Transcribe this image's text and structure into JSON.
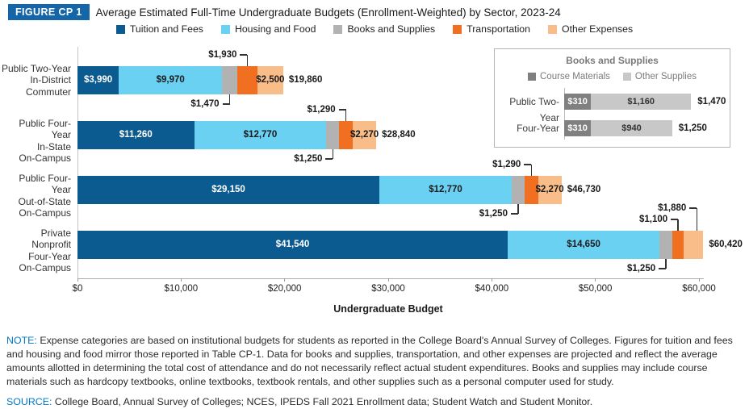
{
  "header": {
    "figure_tag": "FIGURE CP 1",
    "title": "Average Estimated Full-Time Undergraduate Budgets (Enrollment-Weighted) by Sector, 2023-24"
  },
  "legend": {
    "items": [
      {
        "label": "Tuition and Fees",
        "color": "#0b5a90"
      },
      {
        "label": "Housing and Food",
        "color": "#6ad1f2"
      },
      {
        "label": "Books and Supplies",
        "color": "#b2b2b2"
      },
      {
        "label": "Transportation",
        "color": "#f16f21"
      },
      {
        "label": "Other Expenses",
        "color": "#f9bd89"
      }
    ]
  },
  "chart_data": {
    "type": "bar",
    "stacked": true,
    "orientation": "horizontal",
    "xlabel": "Undergraduate Budget",
    "xlim": [
      0,
      60000
    ],
    "x_tick_values": [
      0,
      10000,
      20000,
      30000,
      40000,
      50000,
      60000
    ],
    "x_tick_labels": [
      "$0",
      "$10,000",
      "$20,000",
      "$30,000",
      "$40,000",
      "$50,000",
      "$60,000"
    ],
    "series": [
      "Tuition and Fees",
      "Housing and Food",
      "Books and Supplies",
      "Transportation",
      "Other Expenses"
    ],
    "colors": [
      "#0b5a90",
      "#6ad1f2",
      "#b2b2b2",
      "#f16f21",
      "#f9bd89"
    ],
    "rows": [
      {
        "category_lines": [
          "Public Two-Year",
          "In-District",
          "Commuter"
        ],
        "values": [
          3990,
          9970,
          1470,
          1930,
          2500
        ],
        "segment_labels": [
          "$3,990",
          "$9,970",
          "$1,470",
          "$1,930",
          "$2,500"
        ],
        "total": 19860,
        "total_label": "$19,860",
        "inside": [
          0,
          1,
          4
        ],
        "callouts": [
          {
            "seg": 3,
            "side": "above",
            "tier": 1
          },
          {
            "seg": 2,
            "side": "below",
            "tier": 1
          }
        ]
      },
      {
        "category_lines": [
          "Public Four-Year",
          "In-State",
          "On-Campus"
        ],
        "values": [
          11260,
          12770,
          1250,
          1290,
          2270
        ],
        "segment_labels": [
          "$11,260",
          "$12,770",
          "$1,250",
          "$1,290",
          "$2,270"
        ],
        "total": 28840,
        "total_label": "$28,840",
        "inside": [
          0,
          1,
          4
        ],
        "callouts": [
          {
            "seg": 3,
            "side": "above",
            "tier": 1
          },
          {
            "seg": 2,
            "side": "below",
            "tier": 1
          }
        ]
      },
      {
        "category_lines": [
          "Public Four-Year",
          "Out-of-State",
          "On-Campus"
        ],
        "values": [
          29150,
          12770,
          1250,
          1290,
          2270
        ],
        "segment_labels": [
          "$29,150",
          "$12,770",
          "$1,250",
          "$1,290",
          "$2,270"
        ],
        "total": 46730,
        "total_label": "$46,730",
        "inside": [
          0,
          1,
          4
        ],
        "callouts": [
          {
            "seg": 3,
            "side": "above",
            "tier": 1
          },
          {
            "seg": 2,
            "side": "below",
            "tier": 1
          }
        ]
      },
      {
        "category_lines": [
          "Private Nonprofit",
          "Four-Year",
          "On-Campus"
        ],
        "values": [
          41540,
          14650,
          1250,
          1100,
          1880
        ],
        "segment_labels": [
          "$41,540",
          "$14,650",
          "$1,250",
          "$1,100",
          "$1,880"
        ],
        "total": 60420,
        "total_label": "$60,420",
        "inside": [
          0,
          1
        ],
        "callouts": [
          {
            "seg": 4,
            "side": "above",
            "tier": 2
          },
          {
            "seg": 3,
            "side": "above",
            "tier": 1
          },
          {
            "seg": 2,
            "side": "below",
            "tier": 1
          }
        ]
      }
    ]
  },
  "inset_chart": {
    "type": "bar",
    "stacked": true,
    "orientation": "horizontal",
    "title": "Books and Supplies",
    "series": [
      "Course Materials",
      "Other Supplies"
    ],
    "colors": [
      "#808080",
      "#c8c8c8"
    ],
    "rows": [
      {
        "category": "Public Two-Year",
        "values": [
          310,
          1160
        ],
        "segment_labels": [
          "$310",
          "$1,160"
        ],
        "total": 1470,
        "total_label": "$1,470"
      },
      {
        "category": "Four-Year",
        "values": [
          310,
          940
        ],
        "segment_labels": [
          "$310",
          "$940"
        ],
        "total": 1250,
        "total_label": "$1,250"
      }
    ]
  },
  "notes": {
    "note_prefix": "NOTE:",
    "note_text": " Expense categories are based on institutional budgets for students as reported in the College Board's Annual Survey of Colleges. Figures for tuition and fees and housing and food mirror those reported in Table CP-1. Data for books and supplies, transportation, and other expenses are projected and reflect the average amounts allotted in determining the total cost of attendance and do not necessarily reflect actual student expenditures. Books and supplies may include course materials such as hardcopy textbooks, online textbooks, textbook rentals, and other supplies such as a personal computer used for study.",
    "source_prefix": "SOURCE:",
    "source_text": " College Board, Annual Survey of Colleges; NCES, IPEDS Fall 2021 Enrollment data; Student Watch and Student Monitor."
  }
}
